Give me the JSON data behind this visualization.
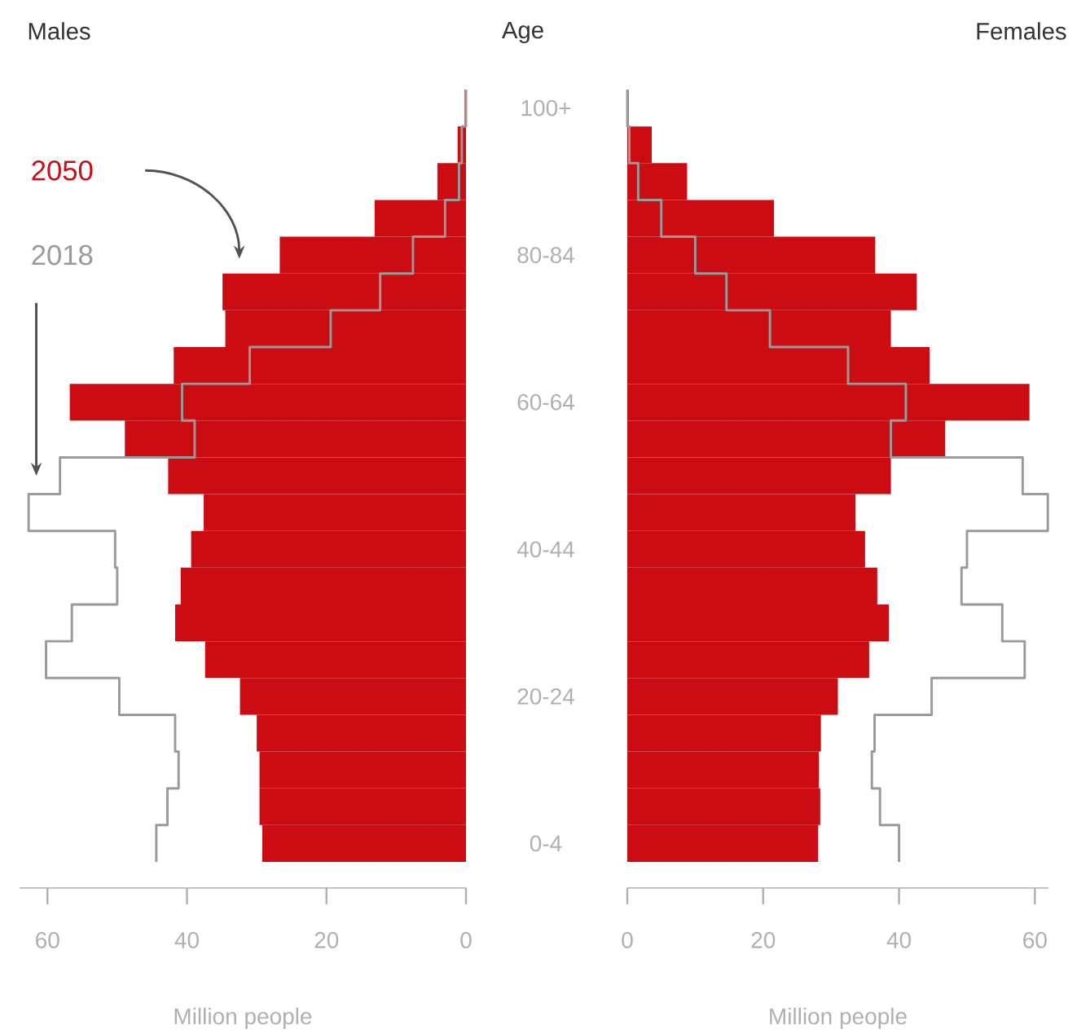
{
  "chart_data": [
    {
      "type": "bar",
      "orientation": "horizontal",
      "title": "Males",
      "ylabel": "Age",
      "xlabel": "Million people",
      "categories": [
        "100+",
        null,
        null,
        null,
        "80-84",
        null,
        null,
        null,
        "60-64",
        null,
        null,
        null,
        "40-44",
        null,
        null,
        null,
        "20-24",
        null,
        null,
        null,
        "0-4"
      ],
      "xlim": [
        64,
        0
      ],
      "xticks": [
        60,
        40,
        20,
        0
      ],
      "series": [
        {
          "name": "2050",
          "color": "#cc0c13",
          "values": [
            0.2,
            1.2,
            4.1,
            13.1,
            26.7,
            34.9,
            34.5,
            41.9,
            56.8,
            48.9,
            42.7,
            37.6,
            39.4,
            40.9,
            41.7,
            37.4,
            32.4,
            30.0,
            29.6,
            29.6,
            29.2
          ]
        },
        {
          "name": "2018",
          "type": "step",
          "color": "#9a9a9a",
          "values": [
            0,
            0.6,
            1.0,
            3.0,
            7.6,
            12.3,
            19.4,
            31.0,
            40.7,
            38.9,
            58.2,
            62.7,
            50.3,
            50.0,
            56.5,
            60.2,
            49.7,
            41.7,
            41.2,
            42.8,
            44.4
          ]
        }
      ]
    },
    {
      "type": "bar",
      "orientation": "horizontal",
      "title": "Females",
      "xlabel": "Million people",
      "tick_labels": "x",
      "categories": [
        null,
        null,
        null,
        null,
        null,
        null,
        null,
        null,
        null,
        null,
        null,
        null,
        null,
        null,
        null,
        null,
        null,
        null,
        null,
        null,
        null
      ],
      "xlim": [
        0,
        62
      ],
      "xticks": [
        0,
        20,
        40,
        60
      ],
      "series": [
        {
          "color": "#cc0c13",
          "values": [
            0.2,
            3.6,
            8.8,
            21.6,
            36.5,
            42.6,
            38.8,
            44.5,
            59.2,
            46.8,
            38.8,
            33.6,
            35.0,
            36.8,
            38.5,
            35.6,
            31.0,
            28.5,
            28.2,
            28.4,
            28.1
          ]
        },
        {
          "type": "step",
          "color": "#9a9a9a",
          "values": [
            0,
            0.3,
            1.6,
            5.0,
            10.0,
            14.6,
            21.0,
            32.5,
            41.0,
            38.8,
            58.2,
            61.9,
            50.0,
            49.2,
            55.2,
            58.5,
            44.8,
            36.4,
            36.0,
            37.2,
            40.0
          ]
        }
      ]
    }
  ]
}
